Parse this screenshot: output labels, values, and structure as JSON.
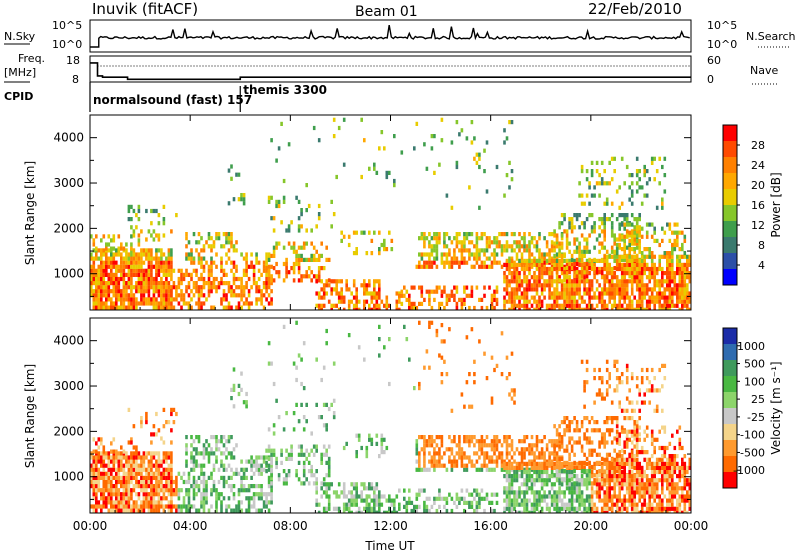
{
  "header": {
    "station": "Inuvik (fitACF)",
    "beam": "Beam 01",
    "date": "22/Feb/2010"
  },
  "labels": {
    "nsky": "N.Sky",
    "nsearch": "N.Search",
    "freq": "Freq.",
    "freq_unit": "[MHz]",
    "nave": "Nave",
    "cpid": "CPID",
    "xlabel": "Time UT",
    "ylabel": "Slant Range [km]"
  },
  "chart_data": [
    {
      "type": "line",
      "name": "noise-panel",
      "left_ticks": [
        "10^5",
        "10^0"
      ],
      "right_ticks": [
        "10^5",
        "10^0"
      ],
      "series": [
        {
          "name": "N.Sky"
        },
        {
          "name": "N.Search"
        }
      ]
    },
    {
      "type": "line",
      "name": "frequency-panel",
      "left_ticks": [
        "18",
        "8"
      ],
      "right_ticks": [
        "60",
        "0"
      ],
      "x": [
        0.0,
        0.3,
        0.5,
        1.5,
        6.0,
        24.0
      ],
      "freq_mhz": [
        16.5,
        11.5,
        11.0,
        10.2,
        11.0,
        11.0
      ],
      "series": [
        {
          "name": "Freq."
        },
        {
          "name": "Nave"
        }
      ]
    },
    {
      "type": "annotation",
      "name": "cpid",
      "entries": [
        {
          "label": "normalsound (fast) 157",
          "start_hr": 0
        },
        {
          "label": "themis 3300",
          "start_hr": 6.0
        }
      ]
    },
    {
      "type": "heatmap",
      "name": "power",
      "xlim": [
        0,
        24
      ],
      "xticks": [
        "00:00",
        "04:00",
        "08:00",
        "12:00",
        "16:00",
        "20:00",
        "00:00"
      ],
      "ylim": [
        200,
        4500
      ],
      "yticks": [
        1000,
        2000,
        3000,
        4000
      ],
      "colorbar_label": "Power [dB]",
      "colorbar_ticks": [
        "28",
        "24",
        "20",
        "16",
        "12",
        "8",
        "4"
      ],
      "colorbar_colors": [
        "#ff0000",
        "#ff4a00",
        "#ff8000",
        "#ffa800",
        "#e8cc00",
        "#86c62a",
        "#3f9e4c",
        "#3a7a6e",
        "#2c4fa8",
        "#0000ff"
      ]
    },
    {
      "type": "heatmap",
      "name": "velocity",
      "xlim": [
        0,
        24
      ],
      "xticks": [
        "00:00",
        "04:00",
        "08:00",
        "12:00",
        "16:00",
        "20:00",
        "00:00"
      ],
      "ylim": [
        200,
        4500
      ],
      "yticks": [
        1000,
        2000,
        3000,
        4000
      ],
      "colorbar_label": "Velocity [m s⁻¹]",
      "colorbar_ticks": [
        "1000",
        "500",
        "100",
        "25",
        "-25",
        "-100",
        "-500",
        "-1000"
      ],
      "colorbar_colors": [
        "#1b2ca8",
        "#2f6cb0",
        "#3f9a5c",
        "#49b842",
        "#8cd46a",
        "#c8c8c8",
        "#f4d48a",
        "#ff9a2e",
        "#ff6a00",
        "#ff0000"
      ]
    }
  ]
}
